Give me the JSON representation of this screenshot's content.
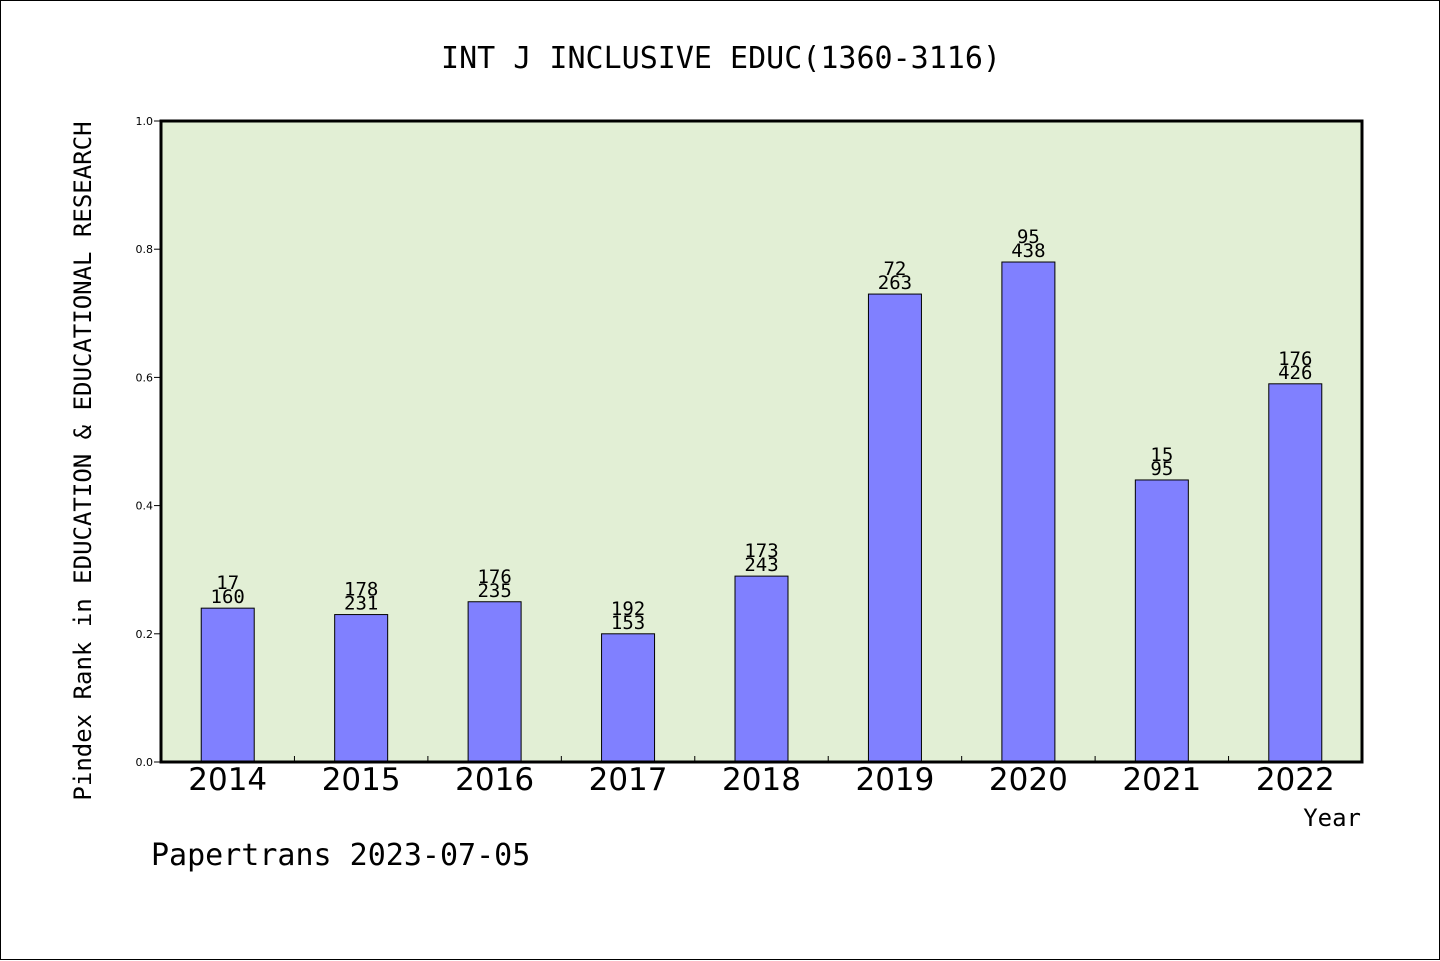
{
  "chart_data": {
    "type": "bar",
    "title": "INT J INCLUSIVE EDUC(1360-3116)",
    "xlabel": "Year",
    "ylabel": "Pindex Rank in EDUCATION & EDUCATIONAL RESEARCH",
    "categories": [
      "2014",
      "2015",
      "2016",
      "2017",
      "2018",
      "2019",
      "2020",
      "2021",
      "2022"
    ],
    "values": [
      0.24,
      0.23,
      0.25,
      0.2,
      0.29,
      0.73,
      0.78,
      0.44,
      0.59
    ],
    "label_top": [
      "17",
      "178",
      "176",
      "192",
      "173",
      "72",
      "95",
      "15",
      "176"
    ],
    "label_bottom": [
      "160",
      "231",
      "235",
      "153",
      "243",
      "263",
      "438",
      "95",
      "426"
    ],
    "ylim": [
      0,
      1.0
    ],
    "yticks": [
      "0.0",
      "0.2",
      "0.4",
      "0.6",
      "0.8",
      "1.0"
    ],
    "ytick_values": [
      0.0,
      0.2,
      0.4,
      0.6,
      0.8,
      1.0
    ],
    "grid": false,
    "colors": {
      "bar": "#8080ff",
      "plot_bg": "#e2efd5",
      "axis": "#000000"
    }
  },
  "footer": "Papertrans 2023-07-05"
}
